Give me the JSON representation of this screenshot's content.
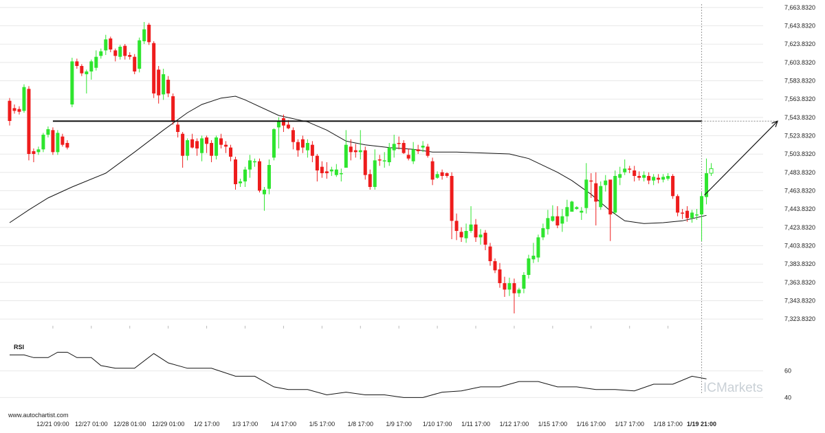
{
  "source_text": "www.autochartist.com",
  "brand": {
    "prefix": "IC",
    "name": "Markets",
    "color": "#c9d0d6"
  },
  "colors": {
    "up": "#2ee52e",
    "down": "#ee1c1c",
    "line": "#111111",
    "grid": "#e8e8e8",
    "divider": "#999999"
  },
  "chart_data": {
    "type": "candlestick",
    "y_range": [
      7318,
      7666
    ],
    "yticks": [
      "7,663.8320",
      "7,643.8320",
      "7,623.8320",
      "7,603.8320",
      "7,583.8320",
      "7,563.8320",
      "7,543.8320",
      "7,523.8320",
      "7,503.8320",
      "7,483.8320",
      "7,463.8320",
      "7,443.8320",
      "7,423.8320",
      "7,403.8320",
      "7,383.8320",
      "7,363.8320",
      "7,343.8320",
      "7,323.8320"
    ],
    "x_labels": [
      {
        "label": "12/21 09:00",
        "candle": 9
      },
      {
        "label": "12/27 01:00",
        "candle": 17
      },
      {
        "label": "12/28 01:00",
        "candle": 25
      },
      {
        "label": "12/29 01:00",
        "candle": 33
      },
      {
        "label": "1/2 17:00",
        "candle": 41
      },
      {
        "label": "1/3 17:00",
        "candle": 49
      },
      {
        "label": "1/4 17:00",
        "candle": 57
      },
      {
        "label": "1/5 17:00",
        "candle": 65
      },
      {
        "label": "1/8 17:00",
        "candle": 73
      },
      {
        "label": "1/9 17:00",
        "candle": 81
      },
      {
        "label": "1/10 17:00",
        "candle": 89
      },
      {
        "label": "1/11 17:00",
        "candle": 97
      },
      {
        "label": "1/12 17:00",
        "candle": 105
      },
      {
        "label": "1/15 17:00",
        "candle": 113
      },
      {
        "label": "1/16 17:00",
        "candle": 121
      },
      {
        "label": "1/17 17:00",
        "candle": 129
      },
      {
        "label": "1/18 17:00",
        "candle": 137
      },
      {
        "label": "1/19 21:00",
        "candle": 144,
        "bold": true
      }
    ],
    "candles": [
      [
        7562,
        7540,
        7565,
        7535
      ],
      [
        7554,
        7551,
        7558,
        7548
      ],
      [
        7553,
        7550,
        7556,
        7547
      ],
      [
        7551,
        7577,
        7580,
        7549
      ],
      [
        7575,
        7504,
        7578,
        7497
      ],
      [
        7507,
        7504,
        7510,
        7495
      ],
      [
        7506,
        7509,
        7512,
        7503
      ],
      [
        7509,
        7525,
        7527,
        7506
      ],
      [
        7525,
        7531,
        7534,
        7522
      ],
      [
        7530,
        7506,
        7533,
        7503
      ],
      [
        7506,
        7527,
        7530,
        7503
      ],
      [
        7523,
        7514,
        7526,
        7512
      ],
      [
        7516,
        7511,
        7519,
        7509
      ],
      [
        7558,
        7605,
        7609,
        7555
      ],
      [
        7605,
        7600,
        7608,
        7597
      ],
      [
        7600,
        7592,
        7602,
        7589
      ],
      [
        7591,
        7594,
        7596,
        7570
      ],
      [
        7594,
        7605,
        7607,
        7585
      ],
      [
        7598,
        7610,
        7617,
        7595
      ],
      [
        7611,
        7616,
        7619,
        7608
      ],
      [
        7617,
        7629,
        7634,
        7612
      ],
      [
        7630,
        7618,
        7632,
        7615
      ],
      [
        7617,
        7611,
        7619,
        7605
      ],
      [
        7610,
        7621,
        7623,
        7607
      ],
      [
        7622,
        7611,
        7624,
        7607
      ],
      [
        7612,
        7610,
        7615,
        7607
      ],
      [
        7610,
        7594,
        7613,
        7591
      ],
      [
        7597,
        7628,
        7631,
        7593
      ],
      [
        7627,
        7640,
        7648,
        7624
      ],
      [
        7645,
        7626,
        7647,
        7623
      ],
      [
        7625,
        7570,
        7627,
        7565
      ],
      [
        7596,
        7568,
        7600,
        7559
      ],
      [
        7569,
        7591,
        7597,
        7563
      ],
      [
        7585,
        7570,
        7589,
        7566
      ],
      [
        7567,
        7540,
        7570,
        7536
      ],
      [
        7536,
        7528,
        7539,
        7522
      ],
      [
        7526,
        7502,
        7528,
        7489
      ],
      [
        7502,
        7519,
        7521,
        7497
      ],
      [
        7520,
        7511,
        7526,
        7510
      ],
      [
        7518,
        7510,
        7521,
        7502
      ],
      [
        7505,
        7521,
        7524,
        7496
      ],
      [
        7522,
        7515,
        7524,
        7505
      ],
      [
        7516,
        7502,
        7519,
        7495
      ],
      [
        7502,
        7522,
        7524,
        7498
      ],
      [
        7521,
        7514,
        7526,
        7510
      ],
      [
        7514,
        7512,
        7518,
        7505
      ],
      [
        7511,
        7501,
        7514,
        7496
      ],
      [
        7498,
        7471,
        7501,
        7465
      ],
      [
        7472,
        7474,
        7477,
        7468
      ],
      [
        7474,
        7487,
        7490,
        7468
      ],
      [
        7487,
        7497,
        7503,
        7478
      ],
      [
        7495,
        7496,
        7499,
        7490
      ],
      [
        7496,
        7464,
        7499,
        7462
      ],
      [
        7460,
        7465,
        7468,
        7442
      ],
      [
        7466,
        7492,
        7498,
        7460
      ],
      [
        7500,
        7531,
        7532,
        7497
      ],
      [
        7533,
        7540,
        7544,
        7510
      ],
      [
        7543,
        7535,
        7547,
        7528
      ],
      [
        7536,
        7532,
        7541,
        7531
      ],
      [
        7530,
        7517,
        7533,
        7509
      ],
      [
        7517,
        7508,
        7520,
        7501
      ],
      [
        7520,
        7511,
        7524,
        7505
      ],
      [
        7508,
        7516,
        7520,
        7500
      ],
      [
        7514,
        7502,
        7518,
        7495
      ],
      [
        7502,
        7486,
        7504,
        7474
      ],
      [
        7490,
        7483,
        7496,
        7478
      ],
      [
        7485,
        7483,
        7495,
        7477
      ],
      [
        7485,
        7487,
        7490,
        7480
      ],
      [
        7481,
        7487,
        7493,
        7479
      ],
      [
        7483,
        7483,
        7488,
        7474
      ],
      [
        7489,
        7514,
        7530,
        7498
      ],
      [
        7512,
        7506,
        7520,
        7497
      ],
      [
        7508,
        7506,
        7515,
        7500
      ],
      [
        7506,
        7508,
        7530,
        7498
      ],
      [
        7508,
        7481,
        7512,
        7476
      ],
      [
        7482,
        7468,
        7487,
        7465
      ],
      [
        7468,
        7497,
        7509,
        7465
      ],
      [
        7498,
        7497,
        7503,
        7491
      ],
      [
        7497,
        7497,
        7506,
        7489
      ],
      [
        7495,
        7511,
        7516,
        7491
      ],
      [
        7508,
        7515,
        7525,
        7500
      ],
      [
        7516,
        7515,
        7523,
        7509
      ],
      [
        7516,
        7505,
        7519,
        7504
      ],
      [
        7503,
        7499,
        7510,
        7497
      ],
      [
        7496,
        7509,
        7517,
        7493
      ],
      [
        7509,
        7507,
        7514,
        7504
      ],
      [
        7511,
        7513,
        7518,
        7506
      ],
      [
        7512,
        7502,
        7515,
        7500
      ],
      [
        7496,
        7476,
        7500,
        7470
      ],
      [
        7478,
        7482,
        7485,
        7477
      ],
      [
        7484,
        7480,
        7487,
        7476
      ],
      [
        7483,
        7480,
        7484,
        7478
      ],
      [
        7480,
        7431,
        7484,
        7411
      ],
      [
        7431,
        7420,
        7439,
        7410
      ],
      [
        7419,
        7413,
        7424,
        7408
      ],
      [
        7412,
        7420,
        7428,
        7407
      ],
      [
        7420,
        7427,
        7447,
        7418
      ],
      [
        7427,
        7413,
        7433,
        7408
      ],
      [
        7413,
        7416,
        7422,
        7405
      ],
      [
        7418,
        7405,
        7421,
        7399
      ],
      [
        7403,
        7387,
        7407,
        7382
      ],
      [
        7387,
        7377,
        7390,
        7374
      ],
      [
        7378,
        7363,
        7385,
        7358
      ],
      [
        7363,
        7356,
        7370,
        7348
      ],
      [
        7356,
        7363,
        7369,
        7349
      ],
      [
        7363,
        7352,
        7368,
        7330
      ],
      [
        7352,
        7356,
        7358,
        7348
      ],
      [
        7357,
        7372,
        7375,
        7352
      ],
      [
        7372,
        7390,
        7394,
        7368
      ],
      [
        7389,
        7393,
        7407,
        7385
      ],
      [
        7391,
        7413,
        7416,
        7386
      ],
      [
        7413,
        7423,
        7428,
        7410
      ],
      [
        7422,
        7434,
        7443,
        7416
      ],
      [
        7431,
        7436,
        7448,
        7430
      ],
      [
        7436,
        7426,
        7447,
        7423
      ],
      [
        7428,
        7436,
        7444,
        7419
      ],
      [
        7436,
        7446,
        7454,
        7430
      ],
      [
        7441,
        7452,
        7453,
        7441
      ],
      [
        7444,
        7446,
        7447,
        7443
      ],
      [
        7440,
        7442,
        7446,
        7432
      ],
      [
        7445,
        7476,
        7494,
        7439
      ],
      [
        7475,
        7474,
        7483,
        7456
      ],
      [
        7472,
        7452,
        7484,
        7426
      ],
      [
        7446,
        7469,
        7474,
        7443
      ],
      [
        7470,
        7475,
        7481,
        7463
      ],
      [
        7476,
        7438,
        7475,
        7409
      ],
      [
        7440,
        7480,
        7486,
        7438
      ],
      [
        7478,
        7482,
        7490,
        7470
      ],
      [
        7484,
        7488,
        7498,
        7481
      ],
      [
        7488,
        7487,
        7491,
        7483
      ],
      [
        7486,
        7480,
        7491,
        7474
      ],
      [
        7480,
        7478,
        7485,
        7475
      ],
      [
        7478,
        7481,
        7485,
        7474
      ],
      [
        7480,
        7475,
        7484,
        7471
      ],
      [
        7475,
        7479,
        7482,
        7470
      ],
      [
        7478,
        7476,
        7482,
        7472
      ],
      [
        7476,
        7479,
        7482,
        7473
      ],
      [
        7477,
        7480,
        7483,
        7475
      ],
      [
        7480,
        7458,
        7482,
        7455
      ],
      [
        7458,
        7440,
        7460,
        7436
      ],
      [
        7440,
        7439,
        7444,
        7433
      ],
      [
        7442,
        7434,
        7447,
        7430
      ],
      [
        7434,
        7440,
        7443,
        7429
      ],
      [
        7438,
        7438,
        7444,
        7432
      ],
      [
        7438,
        7458,
        7462,
        7409
      ],
      [
        7457,
        7483,
        7499,
        7449
      ],
      [
        7483,
        7488,
        7494,
        7480
      ]
    ],
    "moving_average": [
      [
        0,
        7429
      ],
      [
        4,
        7443
      ],
      [
        8,
        7456
      ],
      [
        13,
        7468
      ],
      [
        20,
        7483
      ],
      [
        26,
        7506
      ],
      [
        32,
        7530
      ],
      [
        37,
        7549
      ],
      [
        40,
        7558
      ],
      [
        44,
        7565
      ],
      [
        47,
        7567
      ],
      [
        49,
        7563
      ],
      [
        56,
        7546
      ],
      [
        62,
        7539
      ],
      [
        66,
        7530
      ],
      [
        70,
        7518
      ],
      [
        74,
        7514
      ],
      [
        79,
        7511
      ],
      [
        84,
        7509
      ],
      [
        88,
        7506
      ],
      [
        93,
        7506
      ],
      [
        99,
        7505
      ],
      [
        104,
        7504
      ],
      [
        108,
        7499
      ],
      [
        114,
        7484
      ],
      [
        117,
        7475
      ],
      [
        121,
        7460
      ],
      [
        125,
        7442
      ],
      [
        128,
        7431
      ],
      [
        132,
        7428
      ],
      [
        136,
        7429
      ],
      [
        140,
        7431
      ],
      [
        145,
        7437
      ]
    ],
    "resistance_level": 7539.8,
    "resistance_start_candle": 9,
    "resistance_end_candle": 144,
    "forecast_arrow": {
      "from_value": 7459,
      "to_value": 7539.8
    },
    "rsi": {
      "label": "RSI",
      "yticks": [
        "60",
        "40"
      ],
      "range": [
        34,
        82
      ],
      "values": [
        [
          0,
          72
        ],
        [
          3,
          72
        ],
        [
          5,
          70
        ],
        [
          8,
          70
        ],
        [
          10,
          74
        ],
        [
          12,
          74
        ],
        [
          14,
          70
        ],
        [
          17,
          70
        ],
        [
          19,
          64
        ],
        [
          22,
          62
        ],
        [
          26,
          62
        ],
        [
          30,
          73
        ],
        [
          33,
          66
        ],
        [
          37,
          62
        ],
        [
          42,
          62
        ],
        [
          47,
          56
        ],
        [
          51,
          56
        ],
        [
          55,
          48
        ],
        [
          58,
          46
        ],
        [
          62,
          46
        ],
        [
          66,
          42
        ],
        [
          70,
          44
        ],
        [
          74,
          42
        ],
        [
          78,
          42
        ],
        [
          82,
          40
        ],
        [
          86,
          40
        ],
        [
          90,
          44
        ],
        [
          94,
          45
        ],
        [
          98,
          48
        ],
        [
          102,
          48
        ],
        [
          106,
          52
        ],
        [
          110,
          52
        ],
        [
          114,
          48
        ],
        [
          118,
          48
        ],
        [
          122,
          46
        ],
        [
          126,
          46
        ],
        [
          130,
          45
        ],
        [
          134,
          50
        ],
        [
          138,
          50
        ],
        [
          142,
          56
        ],
        [
          145,
          54
        ]
      ]
    }
  }
}
